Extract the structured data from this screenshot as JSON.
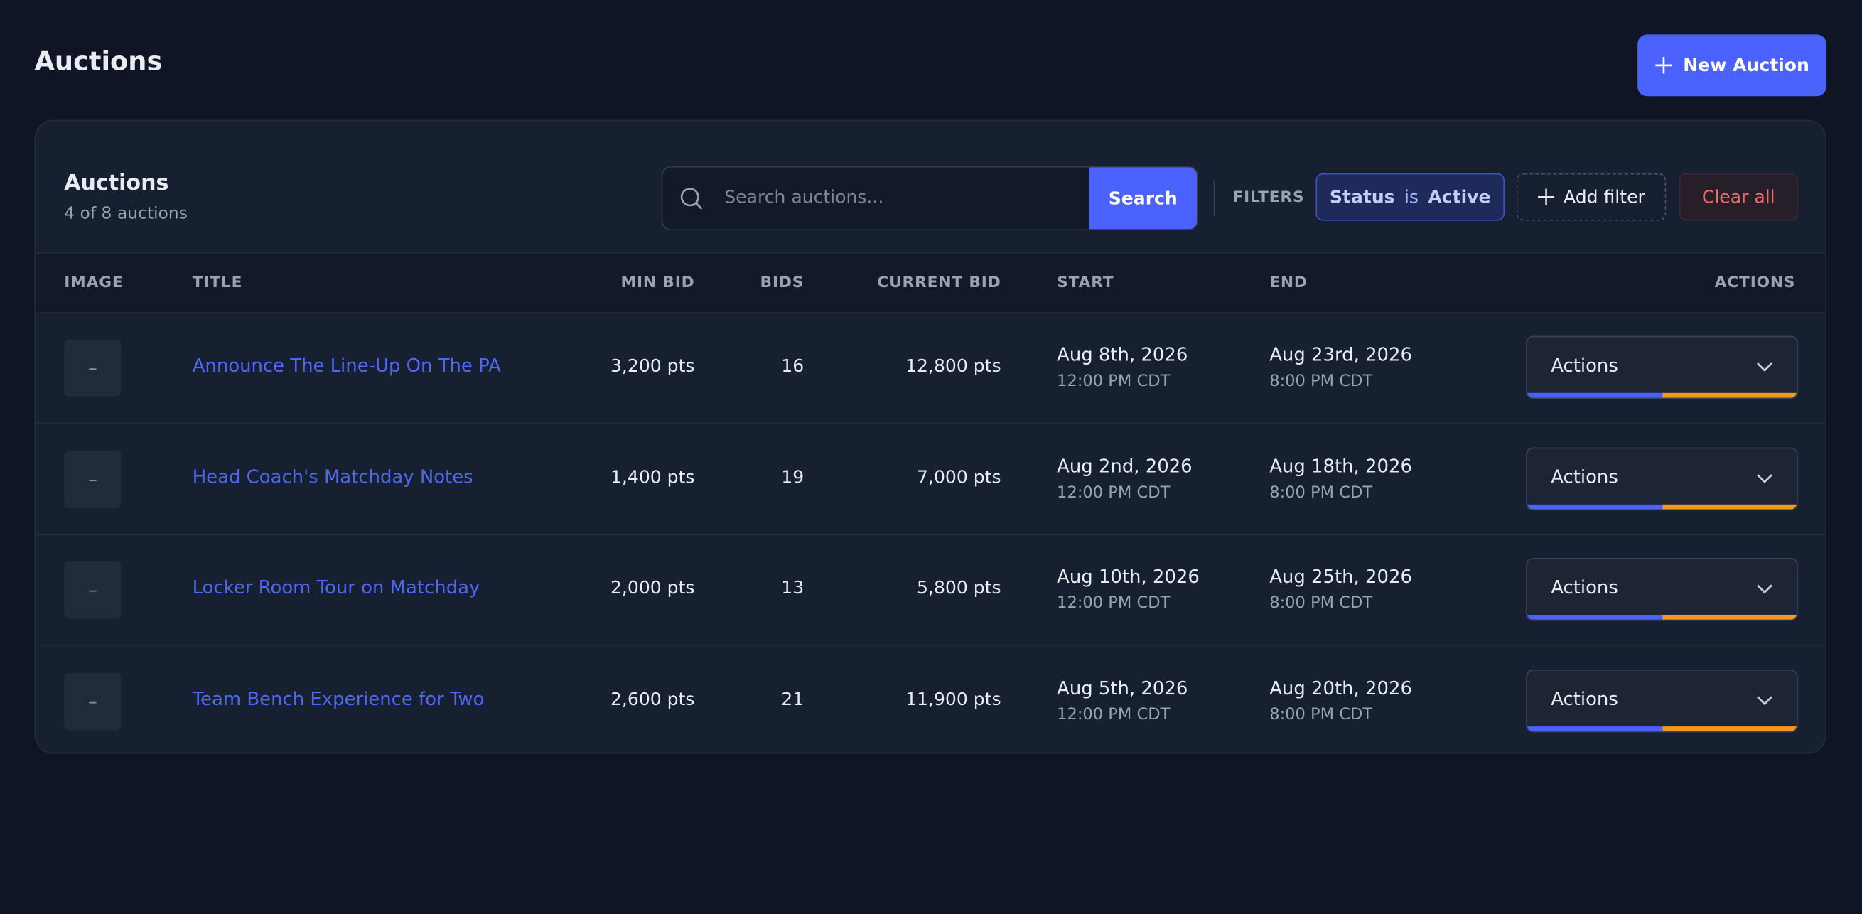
{
  "header": {
    "title": "Auctions",
    "button": "New Auction"
  },
  "panel": {
    "title": "Auctions",
    "subtitle": "4 of 8 auctions"
  },
  "search": {
    "placeholder": "Search auctions...",
    "button": "Search"
  },
  "filters": {
    "label": "FILTERS",
    "chip": {
      "field": "Status",
      "op": "is",
      "value": "Active"
    },
    "add": "Add filter",
    "clear": "Clear all"
  },
  "table": {
    "columns": [
      "IMAGE",
      "TITLE",
      "MIN BID",
      "BIDS",
      "CURRENT BID",
      "START",
      "END",
      "ACTIONS"
    ],
    "rows": [
      {
        "image": "–",
        "title": "Announce The Line-Up On The PA",
        "min_bid": "3,200 pts",
        "bids": "16",
        "current_bid": "12,800 pts",
        "start_date": "Aug 8th, 2026",
        "start_time": "12:00 PM CDT",
        "end_date": "Aug 23rd, 2026",
        "end_time": "8:00 PM CDT",
        "action": "Actions"
      },
      {
        "image": "–",
        "title": "Head Coach's Matchday Notes",
        "min_bid": "1,400 pts",
        "bids": "19",
        "current_bid": "7,000 pts",
        "start_date": "Aug 2nd, 2026",
        "start_time": "12:00 PM CDT",
        "end_date": "Aug 18th, 2026",
        "end_time": "8:00 PM CDT",
        "action": "Actions"
      },
      {
        "image": "–",
        "title": "Locker Room Tour on Matchday",
        "min_bid": "2,000 pts",
        "bids": "13",
        "current_bid": "5,800 pts",
        "start_date": "Aug 10th, 2026",
        "start_time": "12:00 PM CDT",
        "end_date": "Aug 25th, 2026",
        "end_time": "8:00 PM CDT",
        "action": "Actions"
      },
      {
        "image": "–",
        "title": "Team Bench Experience for Two",
        "min_bid": "2,600 pts",
        "bids": "21",
        "current_bid": "11,900 pts",
        "start_date": "Aug 5th, 2026",
        "start_time": "12:00 PM CDT",
        "end_date": "Aug 20th, 2026",
        "end_time": "8:00 PM CDT",
        "action": "Actions"
      }
    ]
  }
}
